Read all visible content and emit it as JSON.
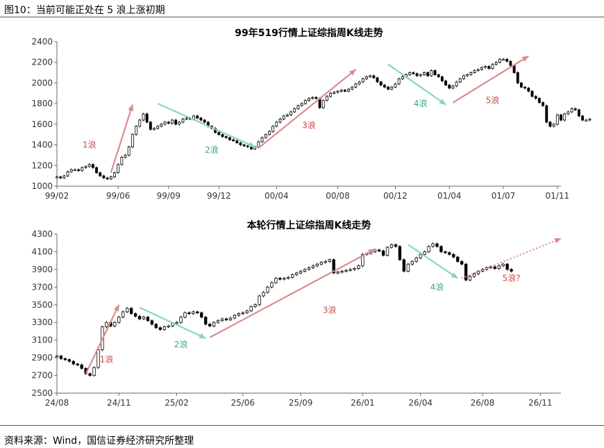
{
  "figure_title": "图10：当前可能正处在 5 浪上涨初期",
  "source": "资料来源：Wind，国信证券经济研究所整理",
  "colors": {
    "up_wave": "#d98c8c",
    "down_wave": "#8ad6b8",
    "up_label": "#c0504d",
    "down_label": "#3aa77b",
    "candle": "#000000"
  },
  "chart_data": [
    {
      "type": "candlestick",
      "title": "99年519行情上证综指周K线走势",
      "ylim": [
        1000,
        2400
      ],
      "yticks": [
        1000,
        1200,
        1400,
        1600,
        1800,
        2000,
        2200,
        2400
      ],
      "xticks": [
        "99/02",
        "99/06",
        "99/09",
        "99/12",
        "00/04",
        "00/08",
        "00/12",
        "01/04",
        "01/07",
        "01/11"
      ],
      "x_range": [
        0,
        140
      ],
      "tick_positions": [
        0,
        17,
        31,
        45,
        61,
        78,
        94,
        109,
        124,
        139
      ],
      "closes": [
        1090,
        1080,
        1100,
        1140,
        1160,
        1160,
        1150,
        1180,
        1190,
        1210,
        1180,
        1130,
        1100,
        1080,
        1070,
        1090,
        1130,
        1210,
        1280,
        1300,
        1380,
        1500,
        1580,
        1640,
        1700,
        1620,
        1550,
        1560,
        1580,
        1600,
        1620,
        1610,
        1640,
        1600,
        1620,
        1650,
        1660,
        1650,
        1680,
        1660,
        1640,
        1620,
        1580,
        1560,
        1520,
        1500,
        1480,
        1470,
        1450,
        1440,
        1420,
        1400,
        1390,
        1380,
        1360,
        1380,
        1430,
        1470,
        1500,
        1530,
        1580,
        1620,
        1650,
        1680,
        1690,
        1720,
        1750,
        1780,
        1800,
        1830,
        1850,
        1860,
        1850,
        1760,
        1830,
        1870,
        1900,
        1910,
        1920,
        1930,
        1920,
        1940,
        1960,
        1990,
        2010,
        2040,
        2060,
        2070,
        2050,
        2010,
        1980,
        1960,
        1940,
        1960,
        1990,
        2040,
        2060,
        2080,
        2100,
        2090,
        2070,
        2080,
        2100,
        2070,
        2120,
        2080,
        2060,
        2020,
        1980,
        1950,
        1970,
        2010,
        2040,
        2070,
        2080,
        2100,
        2120,
        2130,
        2150,
        2160,
        2140,
        2180,
        2200,
        2230,
        2230,
        2210,
        2170,
        2100,
        2000,
        1960,
        1950,
        1920,
        1870,
        1850,
        1810,
        1780,
        1620,
        1580,
        1600,
        1690,
        1640,
        1700,
        1720,
        1750,
        1740,
        1680,
        1640,
        1640,
        1650
      ],
      "waves": [
        {
          "label": "1浪",
          "dir": "up",
          "from": [
            15,
            1130
          ],
          "to": [
            21,
            1790
          ],
          "label_at": [
            9,
            1400
          ]
        },
        {
          "label": "2浪",
          "dir": "down",
          "from": [
            28,
            1800
          ],
          "to": [
            55,
            1380
          ],
          "label_at": [
            43,
            1350
          ]
        },
        {
          "label": "3浪",
          "dir": "up",
          "from": [
            56,
            1370
          ],
          "to": [
            83,
            2130
          ],
          "label_at": [
            70,
            1590
          ]
        },
        {
          "label": "4浪",
          "dir": "down",
          "from": [
            92,
            2180
          ],
          "to": [
            108,
            1790
          ],
          "label_at": [
            101,
            1800
          ]
        },
        {
          "label": "5浪",
          "dir": "up",
          "from": [
            110,
            1810
          ],
          "to": [
            131,
            2260
          ],
          "label_at": [
            121,
            1830
          ]
        }
      ]
    },
    {
      "type": "candlestick",
      "title": "本轮行情上证综指周K线走势",
      "ylim": [
        2500,
        4300
      ],
      "yticks": [
        2500,
        2700,
        2900,
        3100,
        3300,
        3500,
        3700,
        3900,
        4100,
        4300
      ],
      "xticks": [
        "24/08",
        "24/11",
        "25/02",
        "25/06",
        "25/09",
        "26/01",
        "26/04",
        "26/08",
        "26/11"
      ],
      "x_range": [
        0,
        122
      ],
      "tick_positions": [
        0,
        15,
        29,
        45,
        59,
        74,
        88,
        103,
        117
      ],
      "closes": [
        2920,
        2890,
        2880,
        2860,
        2830,
        2820,
        2780,
        2720,
        2700,
        2790,
        2990,
        3250,
        3300,
        3260,
        3300,
        3360,
        3420,
        3460,
        3400,
        3370,
        3340,
        3360,
        3320,
        3280,
        3240,
        3220,
        3250,
        3260,
        3290,
        3300,
        3360,
        3410,
        3400,
        3420,
        3410,
        3360,
        3280,
        3260,
        3300,
        3320,
        3340,
        3330,
        3350,
        3380,
        3400,
        3410,
        3430,
        3480,
        3500,
        3600,
        3640,
        3700,
        3750,
        3800,
        3790,
        3800,
        3810,
        3840,
        3860,
        3880,
        3900,
        3920,
        3940,
        3960,
        3980,
        3990,
        4010,
        3860,
        3870,
        3880,
        3890,
        3900,
        3910,
        3940,
        4070,
        4080,
        4100,
        4120,
        4110,
        4060,
        4150,
        4180,
        4160,
        4010,
        3880,
        3960,
        3990,
        4030,
        4070,
        4100,
        4160,
        4190,
        4160,
        4100,
        4090,
        4070,
        4040,
        3990,
        3960,
        3780,
        3820,
        3850,
        3880,
        3900,
        3920,
        3930,
        3910,
        3940,
        3960,
        3900,
        3880
      ],
      "waves": [
        {
          "label": "1浪",
          "dir": "up",
          "from": [
            7,
            2720
          ],
          "to": [
            15,
            3500
          ],
          "label_at": [
            12,
            2880
          ]
        },
        {
          "label": "2浪",
          "dir": "down",
          "from": [
            20,
            3470
          ],
          "to": [
            36,
            3120
          ],
          "label_at": [
            30,
            3050
          ]
        },
        {
          "label": "3浪",
          "dir": "up",
          "from": [
            37,
            3130
          ],
          "to": [
            77,
            4130
          ],
          "label_at": [
            66,
            3440
          ]
        },
        {
          "label": "4浪",
          "dir": "down",
          "from": [
            85,
            4180
          ],
          "to": [
            97,
            3800
          ],
          "label_at": [
            92,
            3700
          ]
        },
        {
          "label": "5浪?",
          "dir": "up_dotted",
          "from": [
            98,
            3800
          ],
          "to": [
            122,
            4250
          ],
          "label_at": [
            110,
            3800
          ]
        }
      ]
    }
  ]
}
